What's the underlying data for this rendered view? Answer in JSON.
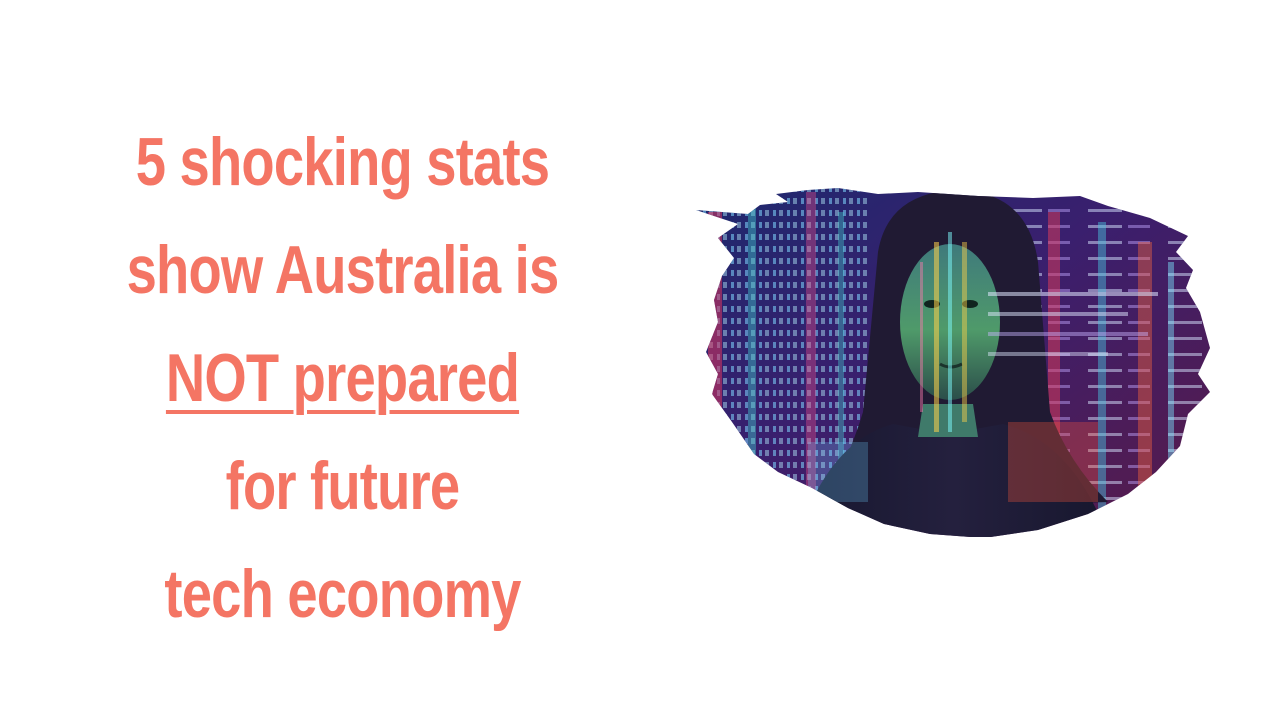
{
  "headline": {
    "lines": [
      "5 shocking stats",
      "show Australia is",
      "NOT prepared",
      "for future",
      "tech economy"
    ]
  },
  "image": {
    "subject": "woman with code projected on face",
    "style": "brush-stroke mask"
  },
  "colors": {
    "accent": "#f47564",
    "background": "#ffffff"
  }
}
